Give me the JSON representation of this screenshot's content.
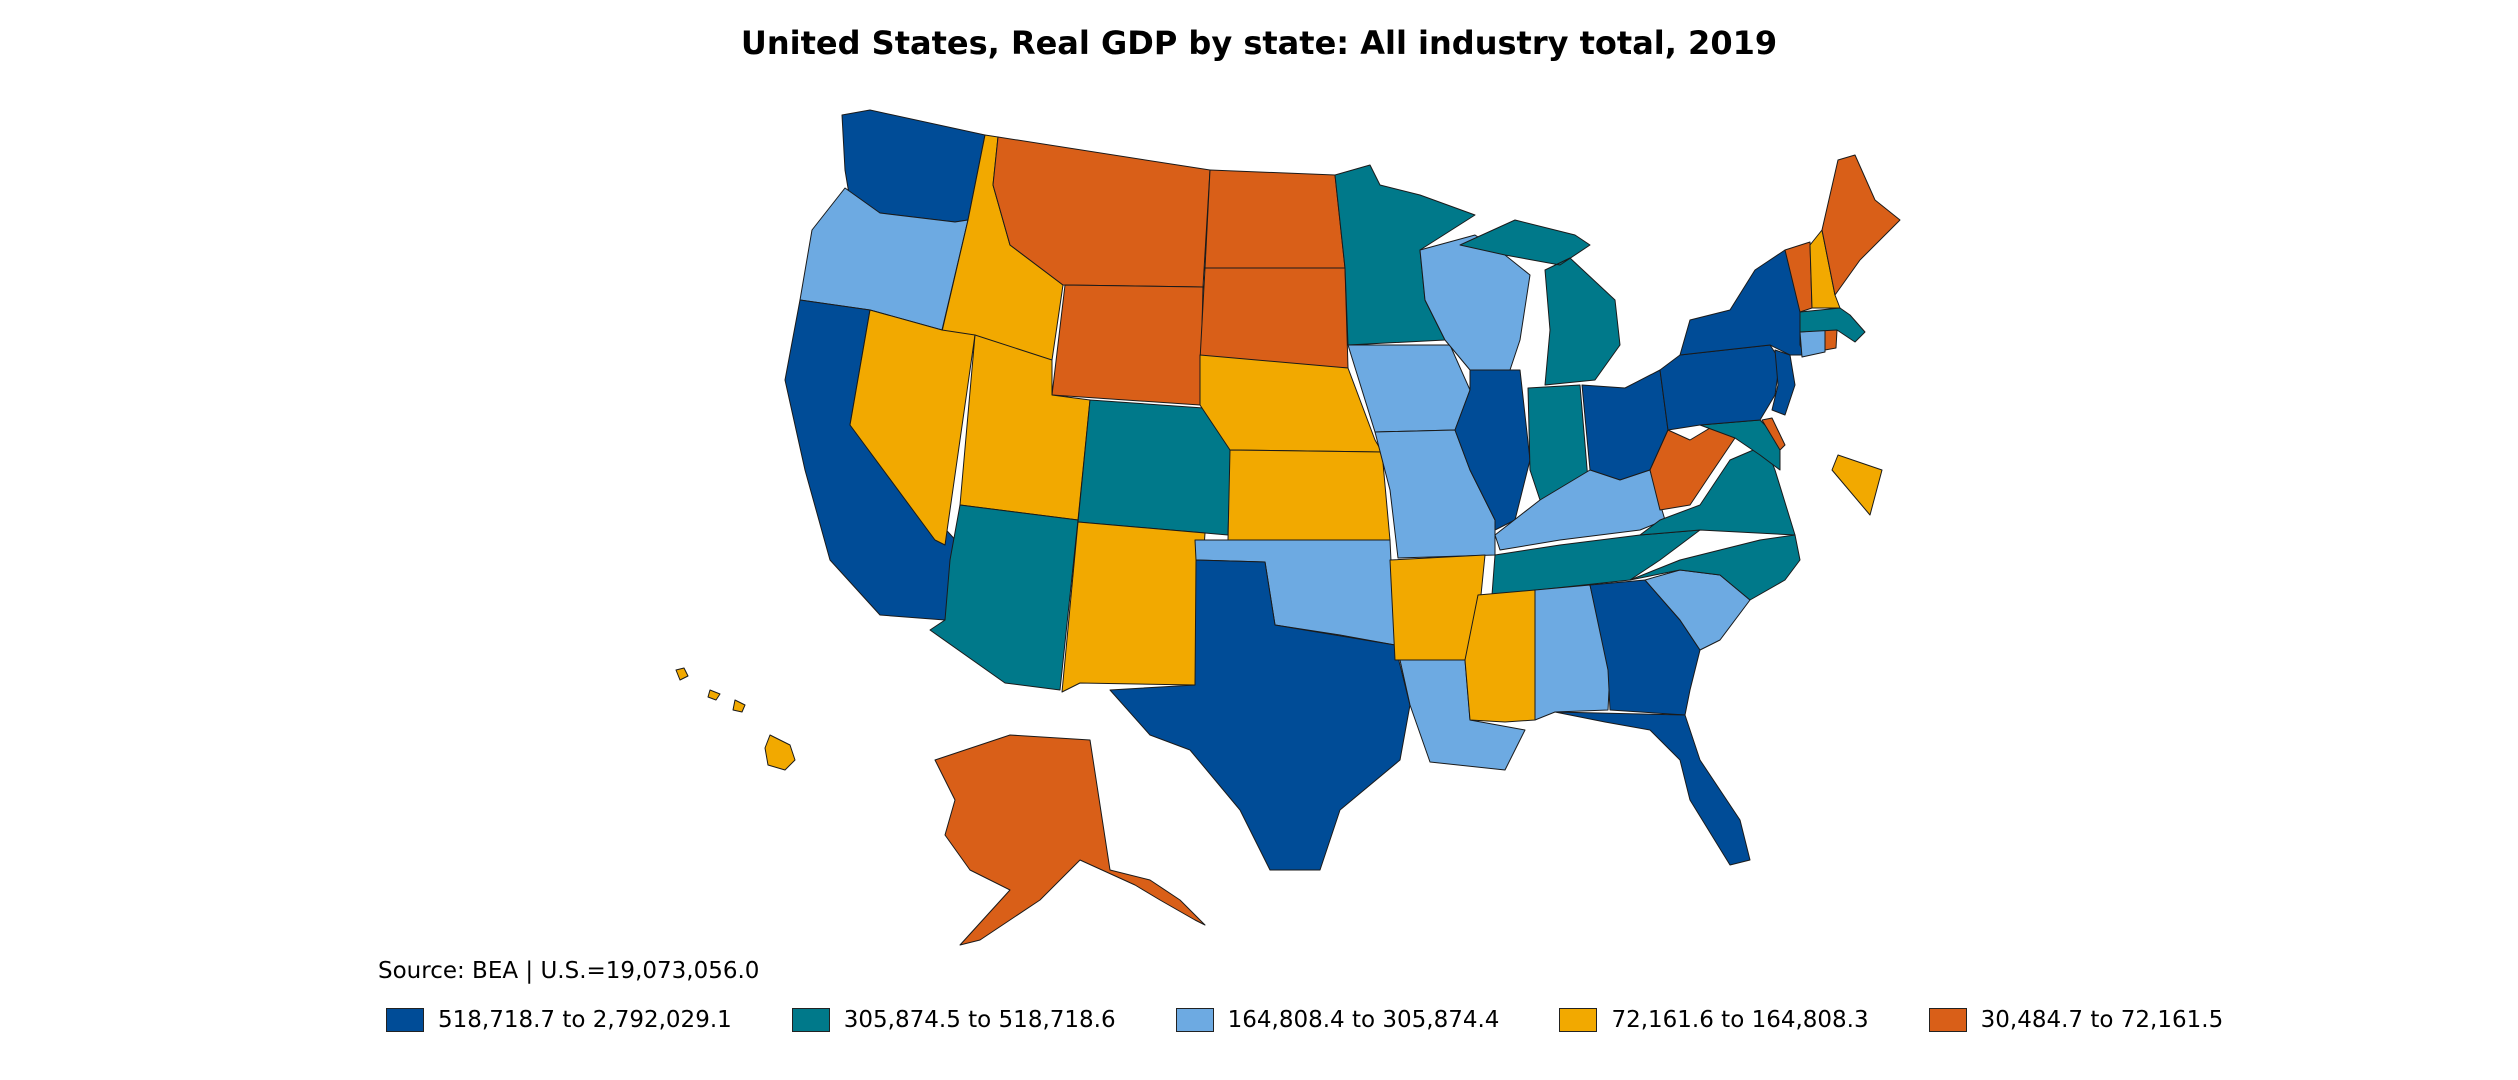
{
  "title": "United States, Real GDP by state: All industry total, 2019",
  "source": "Source: BEA | U.S.=19,073,056.0",
  "legend": [
    {
      "label": "518,718.7 to 2,792,029.1",
      "color": "#004C97"
    },
    {
      "label": "305,874.5 to 518,718.6",
      "color": "#00798A"
    },
    {
      "label": "164,808.4 to 305,874.4",
      "color": "#6DAAE2"
    },
    {
      "label": "72,161.6 to 164,808.3",
      "color": "#F2A900"
    },
    {
      "label": "30,484.7 to 72,161.5",
      "color": "#D95F18"
    }
  ],
  "states": [
    {
      "name": "Washington",
      "bin": 0
    },
    {
      "name": "Oregon",
      "bin": 2
    },
    {
      "name": "California",
      "bin": 0
    },
    {
      "name": "Idaho",
      "bin": 3
    },
    {
      "name": "Nevada",
      "bin": 3
    },
    {
      "name": "Montana",
      "bin": 4
    },
    {
      "name": "Wyoming",
      "bin": 4
    },
    {
      "name": "Utah",
      "bin": 3
    },
    {
      "name": "Arizona",
      "bin": 1
    },
    {
      "name": "Colorado",
      "bin": 1
    },
    {
      "name": "New Mexico",
      "bin": 3
    },
    {
      "name": "North Dakota",
      "bin": 4
    },
    {
      "name": "South Dakota",
      "bin": 4
    },
    {
      "name": "Nebraska",
      "bin": 3
    },
    {
      "name": "Kansas",
      "bin": 3
    },
    {
      "name": "Oklahoma",
      "bin": 2
    },
    {
      "name": "Texas",
      "bin": 0
    },
    {
      "name": "Minnesota",
      "bin": 1
    },
    {
      "name": "Iowa",
      "bin": 2
    },
    {
      "name": "Missouri",
      "bin": 2
    },
    {
      "name": "Arkansas",
      "bin": 3
    },
    {
      "name": "Louisiana",
      "bin": 2
    },
    {
      "name": "Wisconsin",
      "bin": 2
    },
    {
      "name": "Illinois",
      "bin": 0
    },
    {
      "name": "Michigan",
      "bin": 1
    },
    {
      "name": "Indiana",
      "bin": 1
    },
    {
      "name": "Ohio",
      "bin": 0
    },
    {
      "name": "Kentucky",
      "bin": 2
    },
    {
      "name": "Tennessee",
      "bin": 1
    },
    {
      "name": "Mississippi",
      "bin": 3
    },
    {
      "name": "Alabama",
      "bin": 2
    },
    {
      "name": "Georgia",
      "bin": 0
    },
    {
      "name": "Florida",
      "bin": 0
    },
    {
      "name": "South Carolina",
      "bin": 2
    },
    {
      "name": "North Carolina",
      "bin": 1
    },
    {
      "name": "Virginia",
      "bin": 1
    },
    {
      "name": "West Virginia",
      "bin": 4
    },
    {
      "name": "Maryland",
      "bin": 1
    },
    {
      "name": "Delaware",
      "bin": 4
    },
    {
      "name": "Pennsylvania",
      "bin": 0
    },
    {
      "name": "New Jersey",
      "bin": 0
    },
    {
      "name": "New York",
      "bin": 0
    },
    {
      "name": "Connecticut",
      "bin": 2
    },
    {
      "name": "Rhode Island",
      "bin": 4
    },
    {
      "name": "Massachusetts",
      "bin": 1
    },
    {
      "name": "Vermont",
      "bin": 4
    },
    {
      "name": "New Hampshire",
      "bin": 3
    },
    {
      "name": "Maine",
      "bin": 4
    },
    {
      "name": "District of Columbia",
      "bin": 3
    },
    {
      "name": "Alaska",
      "bin": 4
    },
    {
      "name": "Hawaii",
      "bin": 3
    }
  ]
}
